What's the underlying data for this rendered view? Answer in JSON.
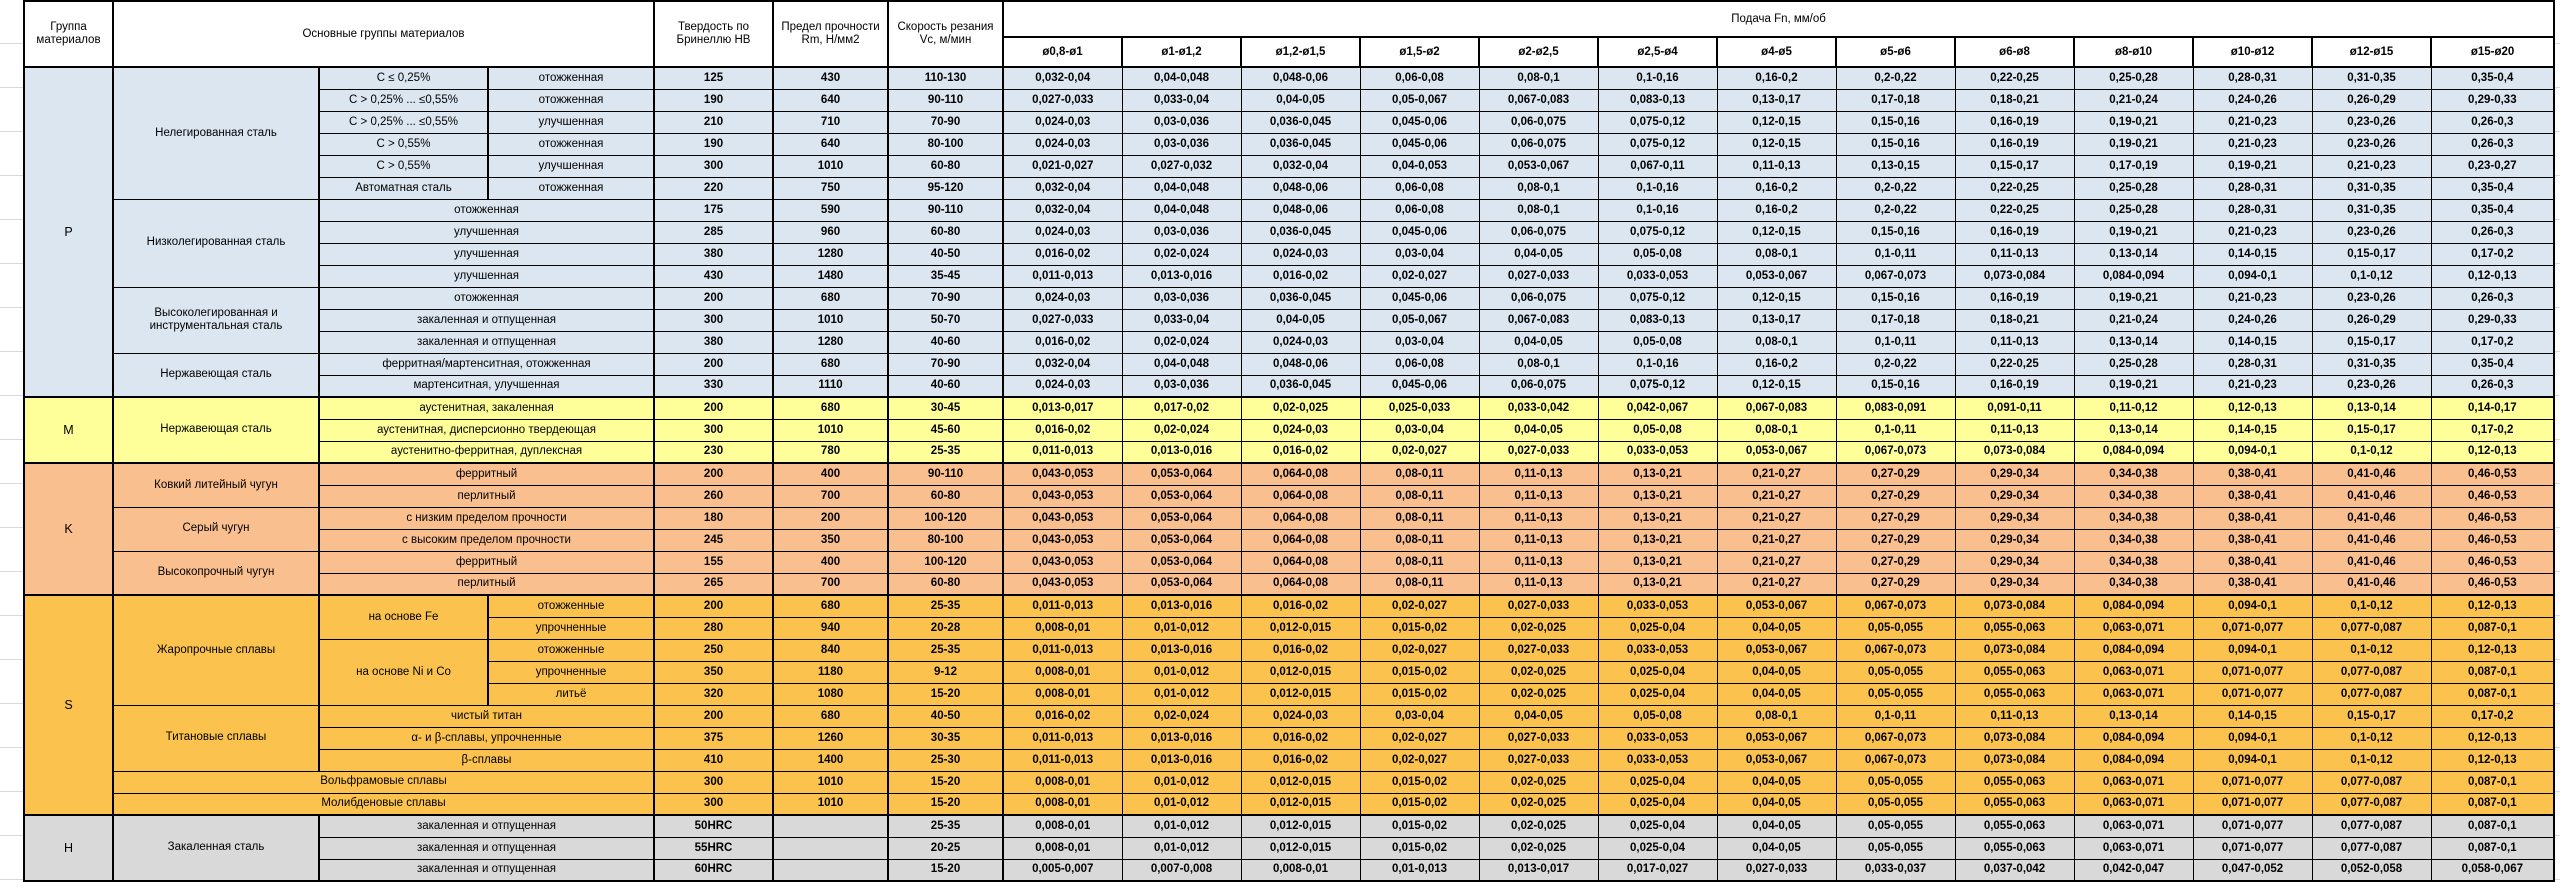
{
  "header": {
    "group": "Группа материалов",
    "main": "Основные группы материалов",
    "hardness": "Твердость по Бринеллю HB",
    "strength": "Предел прочности Rm, Н/мм2",
    "speed": "Скорость резания Vc, м/мин",
    "feed": "Подача Fn, мм/об",
    "diameters": [
      "ø0,8-ø1",
      "ø1-ø1,2",
      "ø1,2-ø1,5",
      "ø1,5-ø2",
      "ø2-ø2,5",
      "ø2,5-ø4",
      "ø4-ø5",
      "ø5-ø6",
      "ø6-ø8",
      "ø8-ø10",
      "ø10-ø12",
      "ø12-ø15",
      "ø15-ø20"
    ]
  },
  "feed_patterns": {
    "p1": [
      "0,032-0,04",
      "0,04-0,048",
      "0,048-0,06",
      "0,06-0,08",
      "0,08-0,1",
      "0,1-0,16",
      "0,16-0,2",
      "0,2-0,22",
      "0,22-0,25",
      "0,25-0,28",
      "0,28-0,31",
      "0,31-0,35",
      "0,35-0,4"
    ],
    "p2": [
      "0,027-0,033",
      "0,033-0,04",
      "0,04-0,05",
      "0,05-0,067",
      "0,067-0,083",
      "0,083-0,13",
      "0,13-0,17",
      "0,17-0,18",
      "0,18-0,21",
      "0,21-0,24",
      "0,24-0,26",
      "0,26-0,29",
      "0,29-0,33"
    ],
    "p3": [
      "0,024-0,03",
      "0,03-0,036",
      "0,036-0,045",
      "0,045-0,06",
      "0,06-0,075",
      "0,075-0,12",
      "0,12-0,15",
      "0,15-0,16",
      "0,16-0,19",
      "0,19-0,21",
      "0,21-0,23",
      "0,23-0,26",
      "0,26-0,3"
    ],
    "p4": [
      "0,021-0,027",
      "0,027-0,032",
      "0,032-0,04",
      "0,04-0,053",
      "0,053-0,067",
      "0,067-0,11",
      "0,11-0,13",
      "0,13-0,15",
      "0,15-0,17",
      "0,17-0,19",
      "0,19-0,21",
      "0,21-0,23",
      "0,23-0,27"
    ],
    "p5": [
      "0,016-0,02",
      "0,02-0,024",
      "0,024-0,03",
      "0,03-0,04",
      "0,04-0,05",
      "0,05-0,08",
      "0,08-0,1",
      "0,1-0,11",
      "0,11-0,13",
      "0,13-0,14",
      "0,14-0,15",
      "0,15-0,17",
      "0,17-0,2"
    ],
    "p6": [
      "0,011-0,013",
      "0,013-0,016",
      "0,016-0,02",
      "0,02-0,027",
      "0,027-0,033",
      "0,033-0,053",
      "0,053-0,067",
      "0,067-0,073",
      "0,073-0,084",
      "0,084-0,094",
      "0,094-0,1",
      "0,1-0,12",
      "0,12-0,13"
    ],
    "m1": [
      "0,013-0,017",
      "0,017-0,02",
      "0,02-0,025",
      "0,025-0,033",
      "0,033-0,042",
      "0,042-0,067",
      "0,067-0,083",
      "0,083-0,091",
      "0,091-0,11",
      "0,11-0,12",
      "0,12-0,13",
      "0,13-0,14",
      "0,14-0,17"
    ],
    "k1": [
      "0,043-0,053",
      "0,053-0,064",
      "0,064-0,08",
      "0,08-0,11",
      "0,11-0,13",
      "0,13-0,21",
      "0,21-0,27",
      "0,27-0,29",
      "0,29-0,34",
      "0,34-0,38",
      "0,38-0,41",
      "0,41-0,46",
      "0,46-0,53"
    ],
    "s1": [
      "0,008-0,01",
      "0,01-0,012",
      "0,012-0,015",
      "0,015-0,02",
      "0,02-0,025",
      "0,025-0,04",
      "0,04-0,05",
      "0,05-0,055",
      "0,055-0,063",
      "0,063-0,071",
      "0,071-0,077",
      "0,077-0,087",
      "0,087-0,1"
    ],
    "h3": [
      "0,005-0,007",
      "0,007-0,008",
      "0,008-0,01",
      "0,01-0,013",
      "0,013-0,017",
      "0,017-0,027",
      "0,027-0,033",
      "0,033-0,037",
      "0,037-0,042",
      "0,042-0,047",
      "0,047-0,052",
      "0,052-0,058",
      "0,058-0,067"
    ]
  },
  "groups": [
    {
      "code": "P",
      "color": "#DCE6F1",
      "families": [
        {
          "name": "Нелегированная сталь",
          "rows": [
            {
              "d1": "C ≤ 0,25%",
              "d2": "отожженная",
              "hb": "125",
              "rm": "430",
              "vc": "110-130",
              "feed": "p1"
            },
            {
              "d1": "C > 0,25% ... ≤0,55%",
              "d2": "отожженная",
              "hb": "190",
              "rm": "640",
              "vc": "90-110",
              "feed": "p2"
            },
            {
              "d1": "C > 0,25% ... ≤0,55%",
              "d2": "улучшенная",
              "hb": "210",
              "rm": "710",
              "vc": "70-90",
              "feed": "p3"
            },
            {
              "d1": "C > 0,55%",
              "d2": "отожженная",
              "hb": "190",
              "rm": "640",
              "vc": "80-100",
              "feed": "p3"
            },
            {
              "d1": "C > 0,55%",
              "d2": "улучшенная",
              "hb": "300",
              "rm": "1010",
              "vc": "60-80",
              "feed": "p4"
            },
            {
              "d1": "Автоматная сталь",
              "d2": "отожженная",
              "hb": "220",
              "rm": "750",
              "vc": "95-120",
              "feed": "p1"
            }
          ]
        },
        {
          "name": "Низколегированная сталь",
          "rows": [
            {
              "d": "отожженная",
              "hb": "175",
              "rm": "590",
              "vc": "90-110",
              "feed": "p1"
            },
            {
              "d": "улучшенная",
              "hb": "285",
              "rm": "960",
              "vc": "60-80",
              "feed": "p3"
            },
            {
              "d": "улучшенная",
              "hb": "380",
              "rm": "1280",
              "vc": "40-50",
              "feed": "p5"
            },
            {
              "d": "улучшенная",
              "hb": "430",
              "rm": "1480",
              "vc": "35-45",
              "feed": "p6"
            }
          ]
        },
        {
          "name": "Высоколегированная и инструментальная сталь",
          "rows": [
            {
              "d": "отожженная",
              "hb": "200",
              "rm": "680",
              "vc": "70-90",
              "feed": "p3"
            },
            {
              "d": "закаленная и отпущенная",
              "hb": "300",
              "rm": "1010",
              "vc": "50-70",
              "feed": "p2"
            },
            {
              "d": "закаленная и отпущенная",
              "hb": "380",
              "rm": "1280",
              "vc": "40-60",
              "feed": "p5"
            }
          ]
        },
        {
          "name": "Нержавеющая сталь",
          "rows": [
            {
              "d": "ферритная/мартенситная, отожженная",
              "hb": "200",
              "rm": "680",
              "vc": "70-90",
              "feed": "p1"
            },
            {
              "d": "мартенситная, улучшенная",
              "hb": "330",
              "rm": "1110",
              "vc": "40-60",
              "feed": "p3"
            }
          ]
        }
      ]
    },
    {
      "code": "M",
      "color": "#FFFF99",
      "families": [
        {
          "name": "Нержавеющая сталь",
          "rows": [
            {
              "d": "аустенитная, закаленная",
              "hb": "200",
              "rm": "680",
              "vc": "30-45",
              "feed": "m1"
            },
            {
              "d": "аустенитная, дисперсионно твердеющая",
              "hb": "300",
              "rm": "1010",
              "vc": "45-60",
              "feed": "p5"
            },
            {
              "d": "аустенитно-ферритная, дуплексная",
              "hb": "230",
              "rm": "780",
              "vc": "25-35",
              "feed": "p6"
            }
          ]
        }
      ]
    },
    {
      "code": "K",
      "color": "#FABF8F",
      "families": [
        {
          "name": "Ковкий литейный чугун",
          "rows": [
            {
              "d": "ферритный",
              "hb": "200",
              "rm": "400",
              "vc": "90-110",
              "feed": "k1"
            },
            {
              "d": "перлитный",
              "hb": "260",
              "rm": "700",
              "vc": "60-80",
              "feed": "k1"
            }
          ]
        },
        {
          "name": "Серый чугун",
          "rows": [
            {
              "d": "с низким пределом прочности",
              "hb": "180",
              "rm": "200",
              "vc": "100-120",
              "feed": "k1"
            },
            {
              "d": "с высоким пределом прочности",
              "hb": "245",
              "rm": "350",
              "vc": "80-100",
              "feed": "k1"
            }
          ]
        },
        {
          "name": "Высокопрочный чугун",
          "rows": [
            {
              "d": "ферритный",
              "hb": "155",
              "rm": "400",
              "vc": "100-120",
              "feed": "k1"
            },
            {
              "d": "перлитный",
              "hb": "265",
              "rm": "700",
              "vc": "60-80",
              "feed": "k1"
            }
          ]
        }
      ]
    },
    {
      "code": "S",
      "color": "#FBC34D",
      "families": [
        {
          "name": "Жаропрочные сплавы",
          "rows": [
            {
              "d1": "на основе Fe",
              "d1span": 2,
              "d2": "отожженные",
              "hb": "200",
              "rm": "680",
              "vc": "25-35",
              "feed": "p6"
            },
            {
              "d2": "упрочненные",
              "hb": "280",
              "rm": "940",
              "vc": "20-28",
              "feed": "s1"
            },
            {
              "d1": "на основе Ni и Co",
              "d1span": 3,
              "d2": "отожженные",
              "hb": "250",
              "rm": "840",
              "vc": "25-35",
              "feed": "p6"
            },
            {
              "d2": "упрочненные",
              "hb": "350",
              "rm": "1180",
              "vc": "9-12",
              "feed": "s1"
            },
            {
              "d2": "литьё",
              "hb": "320",
              "rm": "1080",
              "vc": "15-20",
              "feed": "s1"
            }
          ]
        },
        {
          "name": "Титановые сплавы",
          "rows": [
            {
              "d": "чистый титан",
              "hb": "200",
              "rm": "680",
              "vc": "40-50",
              "feed": "p5"
            },
            {
              "d": "α- и β-сплавы, упрочненные",
              "hb": "375",
              "rm": "1260",
              "vc": "30-35",
              "feed": "p6"
            },
            {
              "d": "β-сплавы",
              "hb": "410",
              "rm": "1400",
              "vc": "25-30",
              "feed": "p6"
            }
          ]
        },
        {
          "name": "Вольфрамовые сплавы",
          "span_all": true,
          "rows": [
            {
              "hb": "300",
              "rm": "1010",
              "vc": "15-20",
              "feed": "s1"
            }
          ]
        },
        {
          "name": "Молибденовые сплавы",
          "span_all": true,
          "rows": [
            {
              "hb": "300",
              "rm": "1010",
              "vc": "15-20",
              "feed": "s1"
            }
          ]
        }
      ]
    },
    {
      "code": "H",
      "color": "#D9D9D9",
      "families": [
        {
          "name": "Закаленная сталь",
          "rows": [
            {
              "d": "закаленная и отпущенная",
              "hb": "50HRC",
              "rm": "",
              "vc": "25-35",
              "feed": "s1"
            },
            {
              "d": "закаленная и отпущенная",
              "hb": "55HRC",
              "rm": "",
              "vc": "20-25",
              "feed": "s1"
            },
            {
              "d": "закаленная и отпущенная",
              "hb": "60HRC",
              "rm": "",
              "vc": "15-20",
              "feed": "h3"
            }
          ]
        }
      ]
    }
  ]
}
